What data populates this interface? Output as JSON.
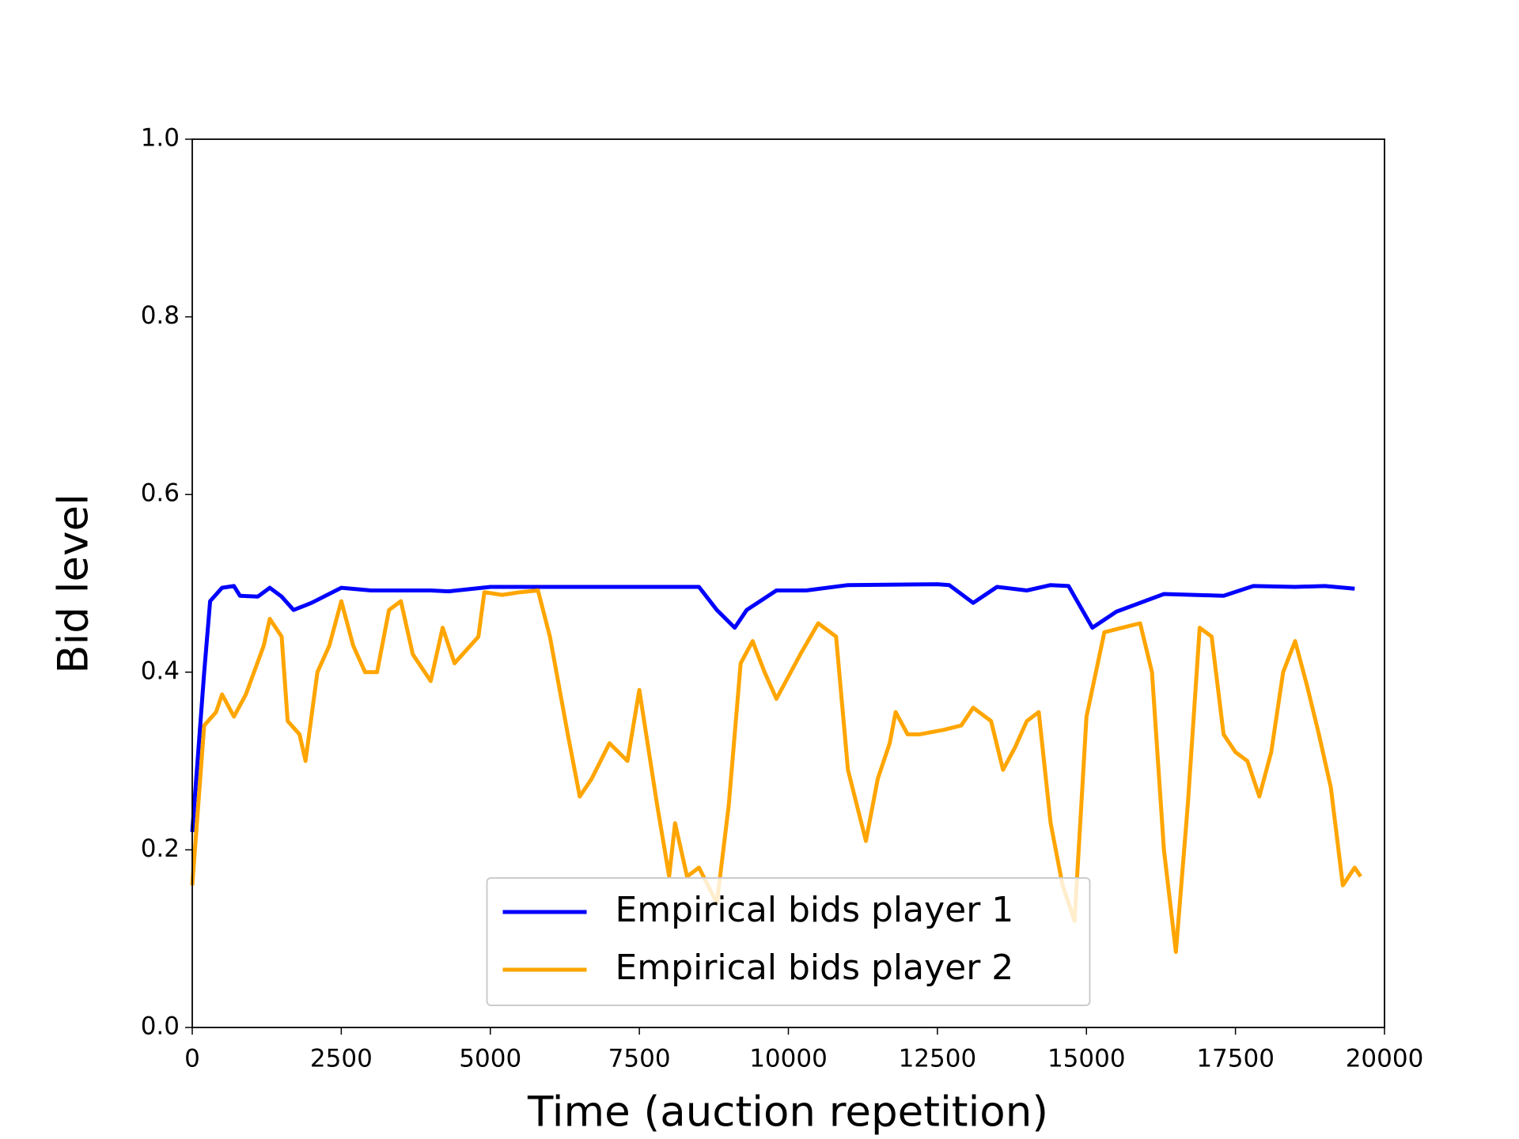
{
  "chart_data": {
    "type": "line",
    "xlabel": "Time (auction repetition)",
    "ylabel": "Bid level",
    "xlim": [
      0,
      20000
    ],
    "ylim": [
      0,
      1
    ],
    "xticks": [
      0,
      2500,
      5000,
      7500,
      10000,
      12500,
      15000,
      17500,
      20000
    ],
    "yticks": [
      {
        "value": 0,
        "label": "0.0"
      },
      0.2,
      0.4,
      0.6,
      0.8,
      {
        "value": 1,
        "label": "1.0"
      }
    ],
    "legend": "lower center",
    "series": [
      {
        "name": "Empirical bids player 1",
        "color": "#0000ff",
        "x": [
          0,
          200,
          300,
          500,
          700,
          800,
          1100,
          1300,
          1500,
          1700,
          2000,
          2500,
          3000,
          4000,
          4300,
          5000,
          6000,
          7500,
          8500,
          8800,
          9100,
          9300,
          9800,
          10300,
          11000,
          12500,
          12700,
          13100,
          13500,
          14000,
          14400,
          14700,
          15100,
          15500,
          16300,
          16800,
          17300,
          17800,
          18500,
          19000,
          19500
        ],
        "values": [
          0.22,
          0.4,
          0.48,
          0.495,
          0.497,
          0.486,
          0.485,
          0.495,
          0.485,
          0.47,
          0.478,
          0.495,
          0.492,
          0.492,
          0.491,
          0.496,
          0.496,
          0.496,
          0.496,
          0.47,
          0.45,
          0.47,
          0.492,
          0.492,
          0.498,
          0.499,
          0.498,
          0.478,
          0.496,
          0.492,
          0.498,
          0.497,
          0.45,
          0.468,
          0.488,
          0.487,
          0.486,
          0.497,
          0.496,
          0.497,
          0.494
        ]
      },
      {
        "name": "Empirical bids player 2",
        "color": "#ffa500",
        "x": [
          0,
          200,
          400,
          500,
          700,
          900,
          1200,
          1300,
          1500,
          1600,
          1800,
          1900,
          2100,
          2300,
          2500,
          2700,
          2900,
          3100,
          3300,
          3500,
          3700,
          4000,
          4200,
          4400,
          4800,
          4900,
          5200,
          5500,
          5800,
          6000,
          6300,
          6500,
          6700,
          7000,
          7300,
          7500,
          7800,
          8000,
          8100,
          8300,
          8500,
          8800,
          9000,
          9200,
          9400,
          9600,
          9800,
          10200,
          10500,
          10800,
          11000,
          11300,
          11500,
          11700,
          11800,
          12000,
          12200,
          12600,
          12900,
          13100,
          13400,
          13600,
          13800,
          14000,
          14200,
          14400,
          14600,
          14800,
          15000,
          15300,
          15600,
          15900,
          16100,
          16300,
          16500,
          16700,
          16900,
          17100,
          17300,
          17500,
          17700,
          17900,
          18100,
          18300,
          18500,
          18700,
          18900,
          19100,
          19300,
          19500,
          19600
        ],
        "values": [
          0.16,
          0.34,
          0.355,
          0.375,
          0.35,
          0.375,
          0.43,
          0.46,
          0.44,
          0.345,
          0.33,
          0.3,
          0.4,
          0.43,
          0.48,
          0.43,
          0.4,
          0.4,
          0.47,
          0.48,
          0.42,
          0.39,
          0.45,
          0.41,
          0.44,
          0.49,
          0.487,
          0.49,
          0.492,
          0.44,
          0.33,
          0.26,
          0.28,
          0.32,
          0.3,
          0.38,
          0.25,
          0.17,
          0.23,
          0.17,
          0.18,
          0.14,
          0.25,
          0.41,
          0.435,
          0.4,
          0.37,
          0.42,
          0.455,
          0.44,
          0.29,
          0.21,
          0.28,
          0.32,
          0.355,
          0.33,
          0.33,
          0.335,
          0.34,
          0.36,
          0.345,
          0.29,
          0.315,
          0.345,
          0.355,
          0.23,
          0.16,
          0.12,
          0.35,
          0.445,
          0.45,
          0.455,
          0.4,
          0.2,
          0.085,
          0.25,
          0.45,
          0.44,
          0.33,
          0.31,
          0.3,
          0.26,
          0.31,
          0.4,
          0.435,
          0.385,
          0.33,
          0.27,
          0.16,
          0.18,
          0.17
        ]
      }
    ]
  }
}
